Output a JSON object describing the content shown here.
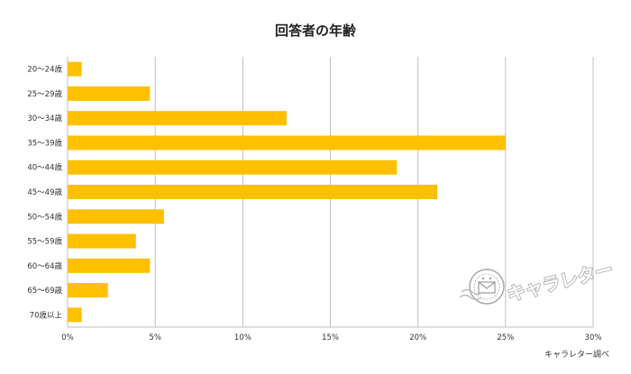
{
  "chart_data": {
    "type": "bar",
    "orientation": "horizontal",
    "title": "回答者の年齢",
    "categories": [
      "20～24歳",
      "25～29歳",
      "30～34歳",
      "35～39歳",
      "40～44歳",
      "45～49歳",
      "50～54歳",
      "55～59歳",
      "60～64歳",
      "65～69歳",
      "70歳以上"
    ],
    "values": [
      0.8,
      4.7,
      12.5,
      25.0,
      18.8,
      21.1,
      5.5,
      3.9,
      4.7,
      2.3,
      0.8
    ],
    "value_unit": "%",
    "xlim": [
      0,
      30
    ],
    "x_ticks": [
      "0%",
      "5%",
      "10%",
      "15%",
      "20%",
      "25%",
      "30%"
    ],
    "grid": true,
    "bar_color": "#ffc000",
    "grid_color": "#bfbfbf"
  },
  "source_note": "キャラレター調べ",
  "logo": {
    "text": "キャラレター",
    "icon": "smiley-envelope-stamp-icon"
  }
}
